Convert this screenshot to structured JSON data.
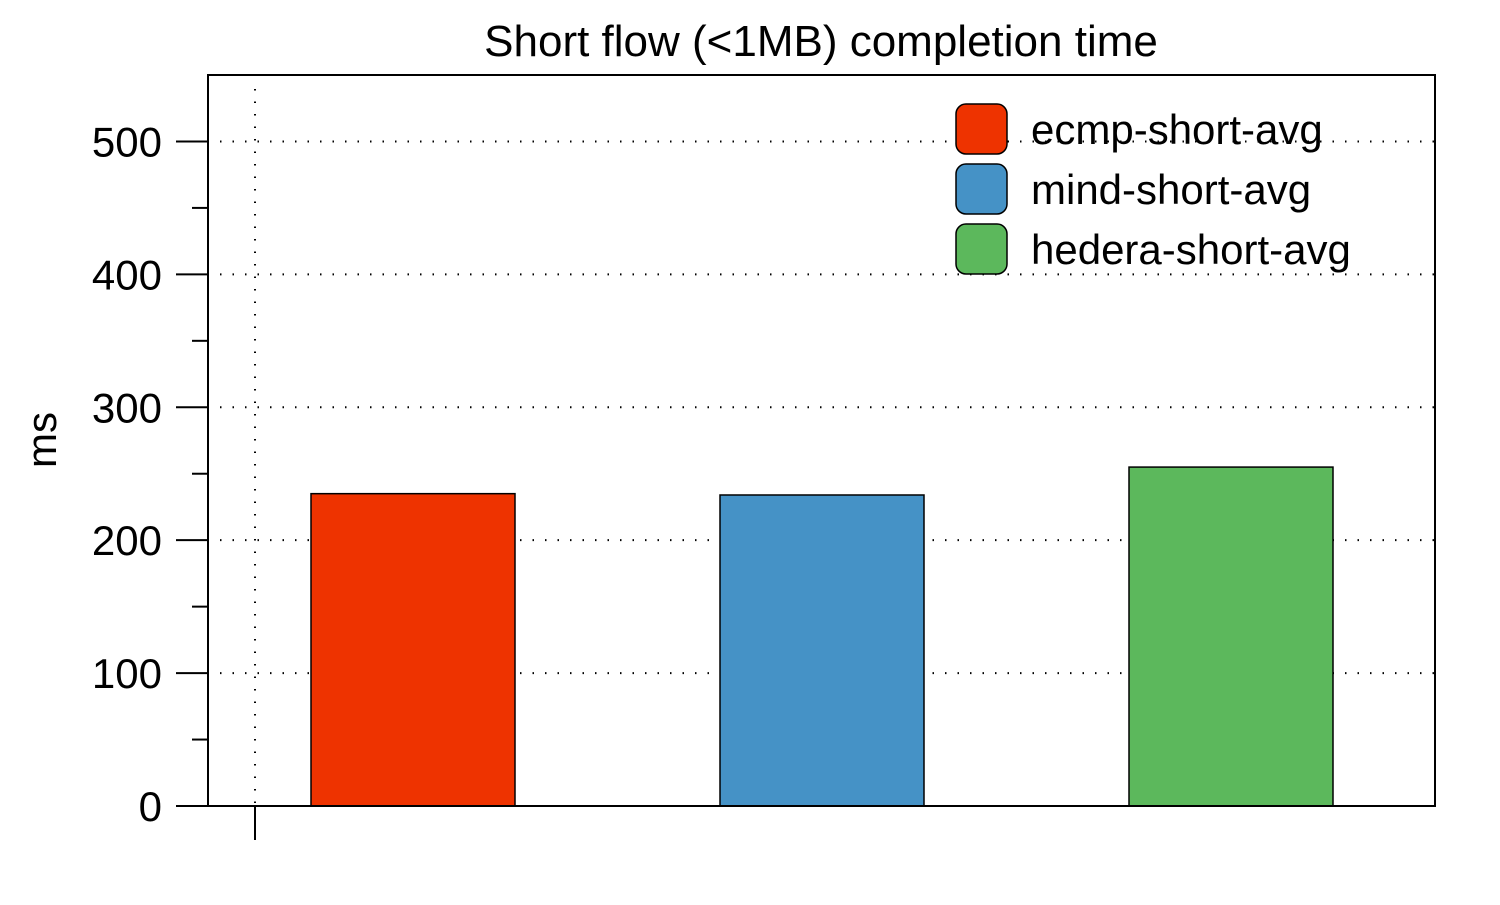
{
  "chart_data": {
    "type": "bar",
    "title": "Short flow (<1MB) completion time",
    "xlabel": "",
    "ylabel": "ms",
    "ylim": [
      0,
      550
    ],
    "yticks_major": [
      0,
      100,
      200,
      300,
      400,
      500
    ],
    "yticks_minor": [
      50,
      150,
      250,
      350,
      450
    ],
    "grid": true,
    "legend_position": "top-right",
    "series": [
      {
        "name": "ecmp-short-avg",
        "value": 235,
        "color": "#EE3300"
      },
      {
        "name": "mind-short-avg",
        "value": 234,
        "color": "#4592C6"
      },
      {
        "name": "hedera-short-avg",
        "value": 255,
        "color": "#5CB85C"
      }
    ]
  }
}
